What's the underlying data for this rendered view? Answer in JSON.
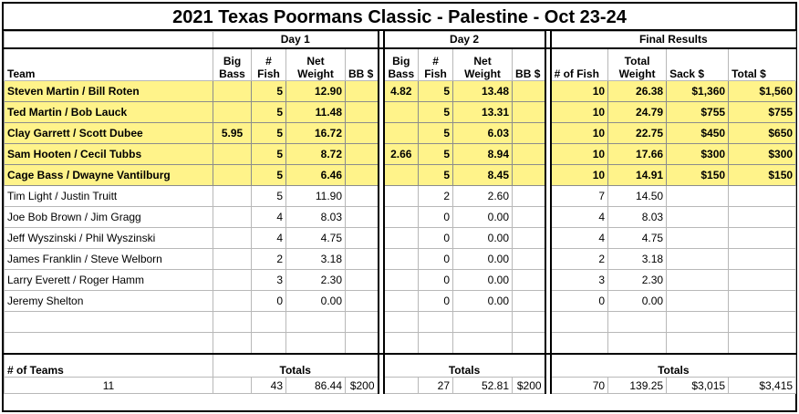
{
  "title": "2021 Texas Poormans Classic - Palestine - Oct 23-24",
  "groups": {
    "day1": "Day 1",
    "day2": "Day 2",
    "final": "Final Results"
  },
  "headers": {
    "team": "Team",
    "big_bass_l1": "Big",
    "big_bass_l2": "Bass",
    "fish_l1": "#",
    "fish_l2": "Fish",
    "net_l1": "Net",
    "net_l2": "Weight",
    "bb": "BB $",
    "num_fish": "# of Fish",
    "total_weight_l1": "Total",
    "total_weight_l2": "Weight",
    "sack": "Sack  $",
    "total_money": "Total  $"
  },
  "rows": [
    {
      "team": "Steven Martin / Bill Roten",
      "d1_bb": "",
      "d1_fish": "5",
      "d1_wt": "12.90",
      "d1_bbd": "",
      "d2_bb": "4.82",
      "d2_fish": "5",
      "d2_wt": "13.48",
      "d2_bbd": "",
      "f_fish": "10",
      "f_wt": "26.38",
      "sack": "$1,360",
      "total": "$1,560"
    },
    {
      "team": "Ted Martin / Bob Lauck",
      "d1_bb": "",
      "d1_fish": "5",
      "d1_wt": "11.48",
      "d1_bbd": "",
      "d2_bb": "",
      "d2_fish": "5",
      "d2_wt": "13.31",
      "d2_bbd": "",
      "f_fish": "10",
      "f_wt": "24.79",
      "sack": "$755",
      "total": "$755"
    },
    {
      "team": "Clay Garrett / Scott Dubee",
      "d1_bb": "5.95",
      "d1_fish": "5",
      "d1_wt": "16.72",
      "d1_bbd": "",
      "d2_bb": "",
      "d2_fish": "5",
      "d2_wt": "6.03",
      "d2_bbd": "",
      "f_fish": "10",
      "f_wt": "22.75",
      "sack": "$450",
      "total": "$650"
    },
    {
      "team": "Sam Hooten / Cecil Tubbs",
      "d1_bb": "",
      "d1_fish": "5",
      "d1_wt": "8.72",
      "d1_bbd": "",
      "d2_bb": "2.66",
      "d2_fish": "5",
      "d2_wt": "8.94",
      "d2_bbd": "",
      "f_fish": "10",
      "f_wt": "17.66",
      "sack": "$300",
      "total": "$300"
    },
    {
      "team": "Cage Bass / Dwayne Vantilburg",
      "d1_bb": "",
      "d1_fish": "5",
      "d1_wt": "6.46",
      "d1_bbd": "",
      "d2_bb": "",
      "d2_fish": "5",
      "d2_wt": "8.45",
      "d2_bbd": "",
      "f_fish": "10",
      "f_wt": "14.91",
      "sack": "$150",
      "total": "$150"
    },
    {
      "team": "Tim Light / Justin Truitt",
      "d1_bb": "",
      "d1_fish": "5",
      "d1_wt": "11.90",
      "d1_bbd": "",
      "d2_bb": "",
      "d2_fish": "2",
      "d2_wt": "2.60",
      "d2_bbd": "",
      "f_fish": "7",
      "f_wt": "14.50",
      "sack": "",
      "total": ""
    },
    {
      "team": "Joe Bob Brown / Jim Gragg",
      "d1_bb": "",
      "d1_fish": "4",
      "d1_wt": "8.03",
      "d1_bbd": "",
      "d2_bb": "",
      "d2_fish": "0",
      "d2_wt": "0.00",
      "d2_bbd": "",
      "f_fish": "4",
      "f_wt": "8.03",
      "sack": "",
      "total": ""
    },
    {
      "team": "Jeff Wyszinski / Phil Wyszinski",
      "d1_bb": "",
      "d1_fish": "4",
      "d1_wt": "4.75",
      "d1_bbd": "",
      "d2_bb": "",
      "d2_fish": "0",
      "d2_wt": "0.00",
      "d2_bbd": "",
      "f_fish": "4",
      "f_wt": "4.75",
      "sack": "",
      "total": ""
    },
    {
      "team": "James Franklin / Steve Welborn",
      "d1_bb": "",
      "d1_fish": "2",
      "d1_wt": "3.18",
      "d1_bbd": "",
      "d2_bb": "",
      "d2_fish": "0",
      "d2_wt": "0.00",
      "d2_bbd": "",
      "f_fish": "2",
      "f_wt": "3.18",
      "sack": "",
      "total": ""
    },
    {
      "team": "Larry Everett / Roger Hamm",
      "d1_bb": "",
      "d1_fish": "3",
      "d1_wt": "2.30",
      "d1_bbd": "",
      "d2_bb": "",
      "d2_fish": "0",
      "d2_wt": "0.00",
      "d2_bbd": "",
      "f_fish": "3",
      "f_wt": "2.30",
      "sack": "",
      "total": ""
    },
    {
      "team": "Jeremy Shelton",
      "d1_bb": "",
      "d1_fish": "0",
      "d1_wt": "0.00",
      "d1_bbd": "",
      "d2_bb": "",
      "d2_fish": "0",
      "d2_wt": "0.00",
      "d2_bbd": "",
      "f_fish": "0",
      "f_wt": "0.00",
      "sack": "",
      "total": ""
    }
  ],
  "highlight_rows": 5,
  "empty_rows": 2,
  "colors": {
    "highlight": "#fff38a",
    "border": "#000000"
  },
  "footer": {
    "teams_label": "# of Teams",
    "totals_label": "Totals",
    "teams_count": "11",
    "d1_fish": "43",
    "d1_wt": "86.44",
    "d1_bbd": "$200",
    "d2_fish": "27",
    "d2_wt": "52.81",
    "d2_bbd": "$200",
    "f_fish": "70",
    "f_wt": "139.25",
    "sack": "$3,015",
    "total": "$3,415"
  }
}
